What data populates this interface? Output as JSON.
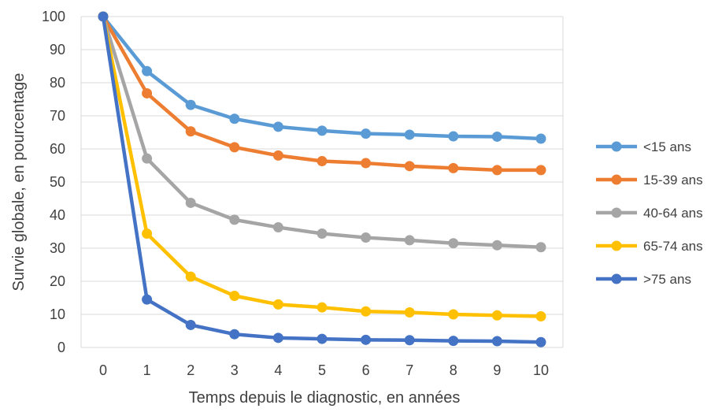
{
  "chart_data": {
    "type": "line",
    "title": "",
    "xlabel": "Temps depuis le diagnostic, en années",
    "ylabel": "Survie globale, en pourcentage",
    "x": [
      0,
      1,
      2,
      3,
      4,
      5,
      6,
      7,
      8,
      9,
      10
    ],
    "ylim": [
      0,
      100
    ],
    "yticks": [
      0,
      10,
      20,
      30,
      40,
      50,
      60,
      70,
      80,
      90,
      100
    ],
    "grid": true,
    "legend_position": "right",
    "series": [
      {
        "name": "<15 ans",
        "color": "#5B9BD5",
        "values": [
          100,
          83.5,
          73.3,
          69.1,
          66.7,
          65.5,
          64.6,
          64.3,
          63.8,
          63.7,
          63.1
        ]
      },
      {
        "name": "15-39 ans",
        "color": "#ED7D31",
        "values": [
          100,
          76.8,
          65.3,
          60.5,
          58.0,
          56.3,
          55.7,
          54.8,
          54.2,
          53.6,
          53.6
        ]
      },
      {
        "name": "40-64 ans",
        "color": "#A5A5A5",
        "values": [
          100,
          57.1,
          43.7,
          38.6,
          36.3,
          34.4,
          33.2,
          32.4,
          31.5,
          30.9,
          30.3
        ]
      },
      {
        "name": "65-74 ans",
        "color": "#FFC000",
        "values": [
          100,
          34.4,
          21.4,
          15.6,
          13.0,
          12.1,
          10.9,
          10.6,
          10.0,
          9.7,
          9.4
        ]
      },
      {
        "name": ">75 ans",
        "color": "#4472C4",
        "values": [
          100,
          14.5,
          6.8,
          4.0,
          2.9,
          2.6,
          2.3,
          2.2,
          2.0,
          1.9,
          1.6
        ]
      }
    ]
  }
}
